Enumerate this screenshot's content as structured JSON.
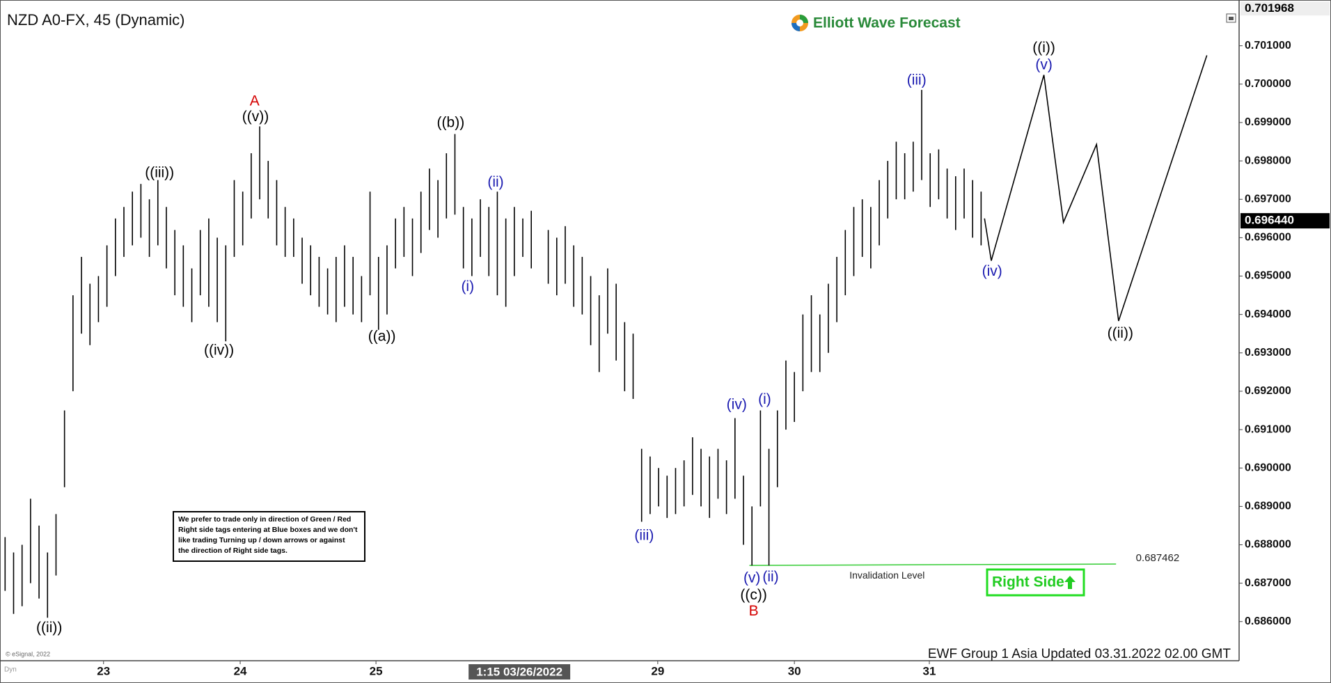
{
  "chart_data": {
    "type": "ohlc",
    "title": "NZD A0-FX, 45 (Dynamic)",
    "color": "#000000",
    "x": [
      0,
      1,
      2,
      3,
      4,
      5,
      6,
      7,
      8,
      9,
      10,
      11,
      12,
      13,
      14,
      15,
      16,
      17,
      18,
      19,
      20,
      21,
      22,
      23,
      24,
      25,
      26,
      27,
      28,
      29,
      30,
      31,
      32,
      33,
      34,
      35,
      36,
      37,
      38,
      39,
      40,
      41,
      42,
      43,
      44,
      45,
      46,
      47,
      48,
      49,
      50,
      51,
      52,
      53,
      54,
      55,
      56,
      57,
      58,
      59,
      60,
      61,
      62,
      63,
      64,
      65,
      66,
      67,
      68,
      69,
      70,
      71,
      72,
      73,
      74,
      75,
      76,
      77,
      78,
      79,
      80,
      81,
      82,
      83,
      84,
      85,
      86,
      87,
      88,
      89,
      90,
      91,
      92,
      93,
      94,
      95,
      96,
      97,
      98,
      99,
      100,
      101,
      102,
      103,
      104,
      105,
      106,
      107,
      108,
      109,
      110,
      111,
      112,
      113,
      114,
      115
    ],
    "high": [
      0.6882,
      0.6878,
      0.688,
      0.6892,
      0.6885,
      0.6878,
      0.6888,
      0.6915,
      0.6945,
      0.6955,
      0.6948,
      0.695,
      0.6958,
      0.6965,
      0.6968,
      0.6972,
      0.6974,
      0.697,
      0.6975,
      0.6968,
      0.6962,
      0.6958,
      0.6952,
      0.6962,
      0.6965,
      0.696,
      0.6958,
      0.6975,
      0.6972,
      0.6982,
      0.6989,
      0.698,
      0.6975,
      0.6968,
      0.6965,
      0.696,
      0.6958,
      0.6955,
      0.6952,
      0.6955,
      0.6958,
      0.6955,
      0.695,
      0.6972,
      0.6955,
      0.6958,
      0.6965,
      0.6968,
      0.6965,
      0.6972,
      0.6978,
      0.6975,
      0.6982,
      0.6987,
      0.6968,
      0.6965,
      0.697,
      0.6968,
      0.6972,
      0.6965,
      0.6968,
      0.6965,
      0.6967,
      null,
      0.6962,
      0.696,
      0.6963,
      0.6958,
      0.6955,
      0.695,
      0.6945,
      0.6952,
      0.6948,
      0.6938,
      0.6935,
      0.6905,
      0.6903,
      0.69,
      0.6898,
      0.69,
      0.6902,
      0.6908,
      0.6905,
      0.6903,
      0.6905,
      0.6902,
      0.6913,
      0.6898,
      0.689,
      0.6915,
      0.6905,
      0.6915,
      0.6928,
      0.6925,
      0.694,
      0.6945,
      0.694,
      0.6948,
      0.6955,
      0.6962,
      0.6968,
      0.697,
      0.6968,
      0.6975,
      0.698,
      0.6985,
      0.6982,
      0.6985,
      0.69985,
      0.6982,
      0.6983,
      0.6978,
      0.6976,
      0.6978,
      0.6975,
      0.6972
    ],
    "low": [
      0.6868,
      0.6862,
      0.6864,
      0.687,
      0.6866,
      0.6861,
      0.6872,
      0.6895,
      0.692,
      0.6935,
      0.6932,
      0.6938,
      0.6942,
      0.695,
      0.6955,
      0.6958,
      0.696,
      0.6955,
      0.6958,
      0.6952,
      0.6945,
      0.6942,
      0.6938,
      0.6945,
      0.6942,
      0.6938,
      0.6933,
      0.6955,
      0.6958,
      0.6965,
      0.697,
      0.6965,
      0.6958,
      0.6955,
      0.6955,
      0.6948,
      0.6945,
      0.6942,
      0.694,
      0.6938,
      0.6942,
      0.694,
      0.6938,
      0.6945,
      0.6936,
      0.694,
      0.6952,
      0.6955,
      0.695,
      0.6956,
      0.6962,
      0.696,
      0.6965,
      0.6966,
      0.6952,
      0.695,
      0.6955,
      0.695,
      0.6945,
      0.6942,
      0.695,
      0.6955,
      0.6952,
      null,
      0.6948,
      0.6945,
      0.6948,
      0.6942,
      0.694,
      0.6932,
      0.6925,
      0.6935,
      0.6928,
      0.692,
      0.6918,
      0.6886,
      0.6888,
      0.689,
      0.6887,
      0.6888,
      0.689,
      0.6893,
      0.689,
      0.6887,
      0.6892,
      0.6888,
      0.6892,
      0.688,
      0.68746,
      0.689,
      0.68746,
      0.6895,
      0.691,
      0.6912,
      0.692,
      0.6925,
      0.6925,
      0.693,
      0.6938,
      0.6945,
      0.695,
      0.6955,
      0.6952,
      0.6958,
      0.6965,
      0.697,
      0.697,
      0.6972,
      0.6975,
      0.6968,
      0.697,
      0.6965,
      0.6962,
      0.6965,
      0.696,
      0.6958
    ],
    "xlim": [
      -0.6,
      145.4
    ],
    "xticks": [
      {
        "value": 11.6,
        "label": "23"
      },
      {
        "value": 27.7,
        "label": "24"
      },
      {
        "value": 43.7,
        "label": "25"
      },
      {
        "value": 76.9,
        "label": "29"
      },
      {
        "value": 93,
        "label": "30"
      },
      {
        "value": 108.9,
        "label": "31"
      }
    ],
    "ylim": [
      0.68498,
      0.70201
    ],
    "yticks": [
      {
        "value": 0.686,
        "label": "0.686000"
      },
      {
        "value": 0.687,
        "label": "0.687000"
      },
      {
        "value": 0.688,
        "label": "0.688000"
      },
      {
        "value": 0.689,
        "label": "0.689000"
      },
      {
        "value": 0.69,
        "label": "0.690000"
      },
      {
        "value": 0.691,
        "label": "0.691000"
      },
      {
        "value": 0.692,
        "label": "0.692000"
      },
      {
        "value": 0.693,
        "label": "0.693000"
      },
      {
        "value": 0.694,
        "label": "0.694000"
      },
      {
        "value": 0.695,
        "label": "0.695000"
      },
      {
        "value": 0.696,
        "label": "0.696000"
      },
      {
        "value": 0.697,
        "label": "0.697000"
      },
      {
        "value": 0.698,
        "label": "0.698000"
      },
      {
        "value": 0.699,
        "label": "0.699000"
      },
      {
        "value": 0.7,
        "label": "0.700000"
      },
      {
        "value": 0.701,
        "label": "0.701000"
      }
    ],
    "top_price": 0.701968,
    "last_price": {
      "value": 0.69644,
      "label": "0.696440"
    },
    "crosshair": {
      "value": 60.6,
      "label": "1:15 03/26/2022"
    },
    "projection": {
      "color": "#000000",
      "x": [
        115.4,
        116.2,
        122.4,
        124.7,
        128.6,
        131.2,
        141.6
      ],
      "values": [
        0.6965,
        0.6954,
        0.70024,
        0.6964,
        0.69843,
        0.69383,
        0.70075
      ]
    },
    "invalidation": {
      "color": "#33cc33",
      "x": [
        87.7,
        130.9
      ],
      "level": 0.687462,
      "text": "Invalidation Level"
    },
    "annotations": [
      {
        "text": "((ii))",
        "x": 5.2,
        "y": 0.68582,
        "color": "#000000"
      },
      {
        "text": "((iii))",
        "x": 18.2,
        "y": 0.69768,
        "color": "#000000"
      },
      {
        "text": "((iv))",
        "x": 25.2,
        "y": 0.69305,
        "color": "#000000"
      },
      {
        "text": "A",
        "x": 29.4,
        "y": 0.69954,
        "color": "#d40000"
      },
      {
        "text": "((v))",
        "x": 29.5,
        "y": 0.69914,
        "color": "#000000"
      },
      {
        "text": "((a))",
        "x": 44.4,
        "y": 0.69341,
        "color": "#000000"
      },
      {
        "text": "((b))",
        "x": 52.5,
        "y": 0.69898,
        "color": "#000000"
      },
      {
        "text": "(i)",
        "x": 54.5,
        "y": 0.69471,
        "color": "#1a1ab0"
      },
      {
        "text": "(ii)",
        "x": 57.8,
        "y": 0.69743,
        "color": "#1a1ab0"
      },
      {
        "text": "(iii)",
        "x": 75.3,
        "y": 0.68823,
        "color": "#1a1ab0"
      },
      {
        "text": "(iv)",
        "x": 86.2,
        "y": 0.69164,
        "color": "#1a1ab0"
      },
      {
        "text": "(i)",
        "x": 89.5,
        "y": 0.69177,
        "color": "#1a1ab0"
      },
      {
        "text": "(v)",
        "x": 88.0,
        "y": 0.68712,
        "color": "#1a1ab0"
      },
      {
        "text": "(ii)",
        "x": 90.2,
        "y": 0.68715,
        "color": "#1a1ab0"
      },
      {
        "text": "((c))",
        "x": 88.2,
        "y": 0.68668,
        "color": "#000000"
      },
      {
        "text": "B",
        "x": 88.2,
        "y": 0.68626,
        "color": "#d40000"
      },
      {
        "text": "(iii)",
        "x": 107.4,
        "y": 0.70009,
        "color": "#1a1ab0"
      },
      {
        "text": "(iv)",
        "x": 116.3,
        "y": 0.69511,
        "color": "#1a1ab0"
      },
      {
        "text": "((i))",
        "x": 122.4,
        "y": 0.70093,
        "color": "#000000"
      },
      {
        "text": "(v)",
        "x": 122.4,
        "y": 0.70049,
        "color": "#1a1ab0"
      },
      {
        "text": "((ii))",
        "x": 131.4,
        "y": 0.6935,
        "color": "#000000"
      }
    ]
  },
  "logo": "Elliott Wave Forecast",
  "footer": "EWF Group 1 Asia Updated 03.31.2022 02.00 GMT",
  "copyright": "© eSignal, 2022",
  "dyn": "Dyn",
  "right_side": "Right Side",
  "notice": [
    "We prefer to trade only in direction of Green / Red",
    "Right side tags entering at Blue boxes and we don't",
    "like trading Turning up / down arrows or against",
    "the direction of Right side tags."
  ]
}
